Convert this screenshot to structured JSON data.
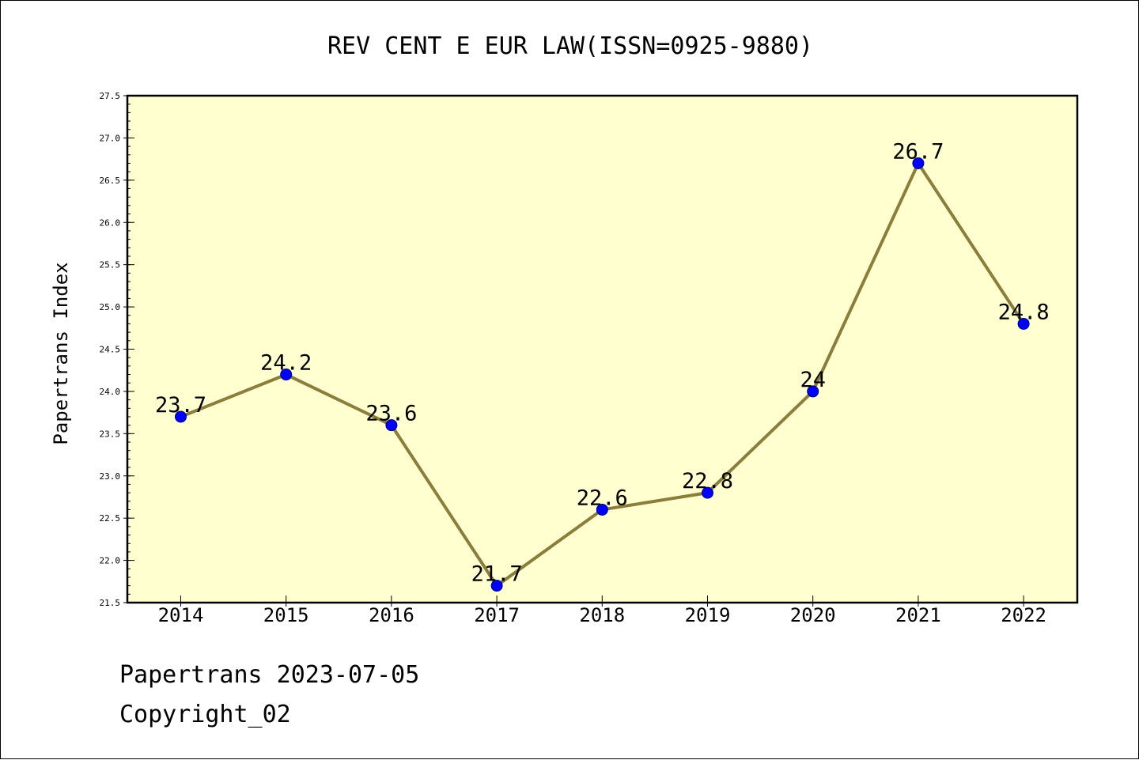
{
  "chart_data": {
    "type": "line",
    "title": "REV CENT E EUR LAW(ISSN=0925-9880)",
    "xlabel": "",
    "ylabel": "Papertrans Index",
    "categories": [
      "2014",
      "2015",
      "2016",
      "2017",
      "2018",
      "2019",
      "2020",
      "2021",
      "2022"
    ],
    "series": [
      {
        "values": [
          23.7,
          24.2,
          23.6,
          21.7,
          22.6,
          22.8,
          24.0,
          26.7,
          24.8
        ]
      }
    ],
    "data_labels": [
      "23.7",
      "24.2",
      "23.6",
      "21.7",
      "22.6",
      "22.8",
      "24",
      "26.7",
      "24.8"
    ],
    "ylim": [
      21.5,
      27.5
    ],
    "yticks": [
      "21.5",
      "22.0",
      "22.5",
      "23.0",
      "23.5",
      "24.0",
      "24.5",
      "25.0",
      "25.5",
      "26.0",
      "26.5",
      "27.0",
      "27.5"
    ],
    "grid": false,
    "legend": "none",
    "colors": {
      "plot_background": "#ffffd0",
      "line": "#8b7d3a",
      "marker": "#0000ff",
      "axis": "#000000"
    }
  },
  "footer": {
    "line1": "Papertrans 2023-07-05",
    "line2": "Copyright_02"
  }
}
